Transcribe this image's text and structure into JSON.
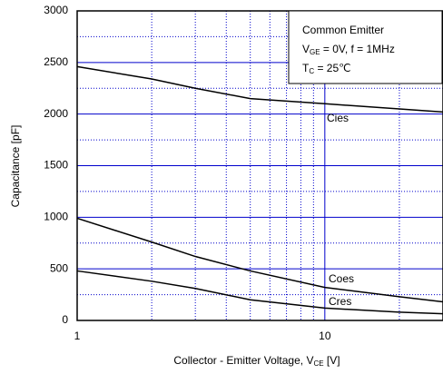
{
  "chart_data": {
    "type": "line",
    "ylabel": "Capacitance [pF]",
    "xlabel_parts": [
      "Collector - Emitter Voltage, V",
      "CE",
      " [V]"
    ],
    "annotations": [
      {
        "parts": [
          "Common Emitter"
        ]
      },
      {
        "parts": [
          "V",
          "GE",
          " = 0V, f = 1MHz"
        ]
      },
      {
        "parts": [
          "T",
          "C",
          " = 25℃"
        ]
      }
    ],
    "x": [
      1,
      2,
      3,
      5,
      10,
      20,
      30
    ],
    "series": [
      {
        "name": "Cies",
        "color": "#000000",
        "values": [
          2460,
          2340,
          2250,
          2150,
          2100,
          2050,
          2020
        ]
      },
      {
        "name": "Coes",
        "color": "#000000",
        "values": [
          990,
          760,
          620,
          480,
          320,
          230,
          180
        ]
      },
      {
        "name": "Cres",
        "color": "#000000",
        "values": [
          480,
          380,
          310,
          200,
          120,
          80,
          65
        ]
      }
    ],
    "xlim": [
      1,
      30
    ],
    "xscale": "log",
    "xticks": [
      1,
      10
    ],
    "xminorticks": [
      2,
      3,
      4,
      5,
      6,
      7,
      8,
      9,
      20,
      30
    ],
    "ylim": [
      0,
      3000
    ],
    "yticks": [
      0,
      500,
      1000,
      1500,
      2000,
      2500,
      3000
    ],
    "yminorticks": [
      250,
      750,
      1250,
      1750,
      2250,
      2750
    ],
    "grid": true,
    "grid_color": "#0000cc"
  }
}
